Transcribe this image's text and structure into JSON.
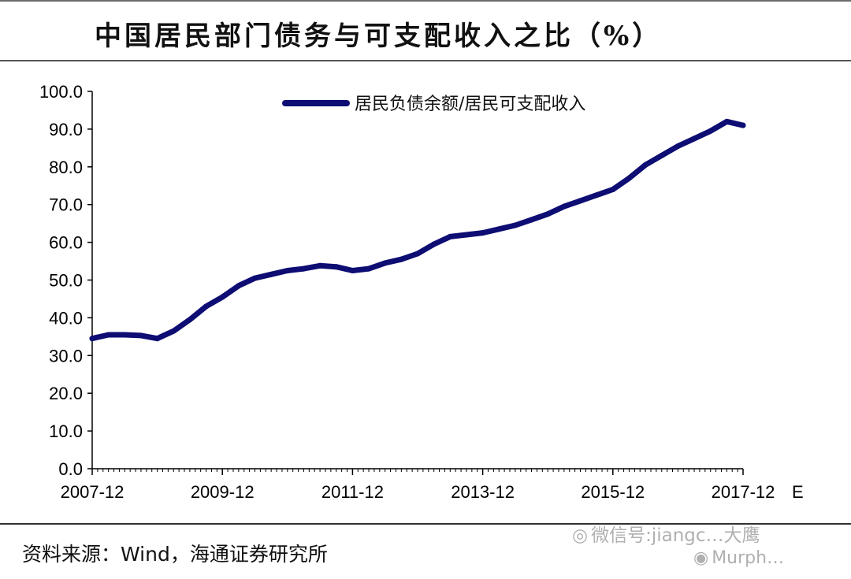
{
  "page_title": "中国居民部门债务与可支配收入之比（%）",
  "source_note": "资料来源：Wind，海通证券研究所",
  "watermark": {
    "wechat": "微信号:jiangc…",
    "wechat_icon": "wechat-icon",
    "weibo": "Murph…",
    "weibo_icon": "weibo-icon",
    "extra_text": "大鹰"
  },
  "colors": {
    "series": "#0d0d73",
    "axis": "#000000"
  },
  "chart_data": {
    "type": "line",
    "title": "中国居民部门债务与可支配收入之比（%）",
    "xlabel": "",
    "ylabel": "",
    "ylim": [
      0,
      100
    ],
    "yticks": [
      "0.0",
      "10.0",
      "20.0",
      "30.0",
      "40.0",
      "50.0",
      "60.0",
      "70.0",
      "80.0",
      "90.0",
      "100.0"
    ],
    "xticks": [
      "2007-12",
      "2009-12",
      "2011-12",
      "2013-12",
      "2015-12",
      "2017-12"
    ],
    "x_suffix": "E",
    "grid": false,
    "legend_position": "top-center",
    "series": [
      {
        "name": "居民负债余额/居民可支配收入",
        "x": [
          "2007-12",
          "2008-03",
          "2008-06",
          "2008-09",
          "2008-12",
          "2009-03",
          "2009-06",
          "2009-09",
          "2009-12",
          "2010-03",
          "2010-06",
          "2010-09",
          "2010-12",
          "2011-03",
          "2011-06",
          "2011-09",
          "2011-12",
          "2012-03",
          "2012-06",
          "2012-09",
          "2012-12",
          "2013-03",
          "2013-06",
          "2013-09",
          "2013-12",
          "2014-03",
          "2014-06",
          "2014-09",
          "2014-12",
          "2015-03",
          "2015-06",
          "2015-09",
          "2015-12",
          "2016-03",
          "2016-06",
          "2016-09",
          "2016-12",
          "2017-03",
          "2017-06",
          "2017-09",
          "2017-12"
        ],
        "values": [
          34.5,
          35.5,
          35.5,
          35.3,
          34.5,
          36.5,
          39.5,
          43.0,
          45.5,
          48.5,
          50.5,
          51.5,
          52.5,
          53.0,
          53.8,
          53.5,
          52.5,
          53.0,
          54.5,
          55.5,
          57.0,
          59.5,
          61.5,
          62.0,
          62.5,
          63.5,
          64.5,
          66.0,
          67.5,
          69.5,
          71.0,
          72.5,
          74.0,
          77.0,
          80.5,
          83.0,
          85.5,
          87.5,
          89.5,
          92.0,
          91.0
        ]
      }
    ]
  }
}
